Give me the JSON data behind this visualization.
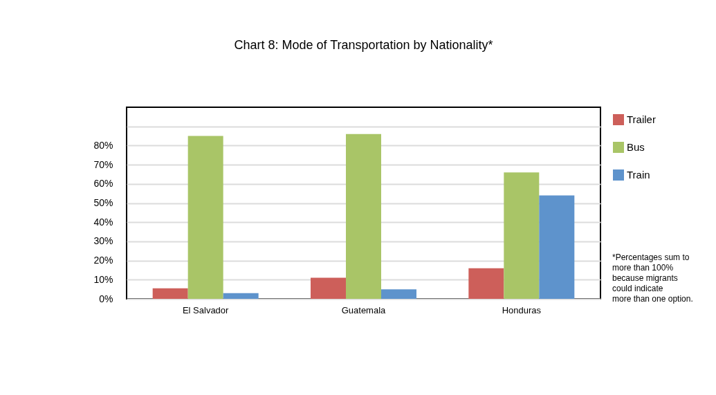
{
  "chart_data": {
    "type": "bar",
    "title": "Chart 8: Mode of Transportation by Nationality*",
    "categories": [
      "El Salvador",
      "Guatemala",
      "Honduras"
    ],
    "series": [
      {
        "name": "Trailer",
        "color": "#cd5f5a",
        "values": [
          5.5,
          11,
          16
        ]
      },
      {
        "name": "Bus",
        "color": "#a9c567",
        "values": [
          85,
          86,
          66
        ]
      },
      {
        "name": "Train",
        "color": "#5e93cc",
        "values": [
          3,
          5,
          54
        ]
      }
    ],
    "ylim": [
      0,
      100
    ],
    "yticks": [
      {
        "value": 0,
        "label": "0%"
      },
      {
        "value": 10,
        "label": "10%"
      },
      {
        "value": 20,
        "label": "20%"
      },
      {
        "value": 30,
        "label": "30%"
      },
      {
        "value": 40,
        "label": "40%"
      },
      {
        "value": 50,
        "label": "50%"
      },
      {
        "value": 60,
        "label": "60%"
      },
      {
        "value": 70,
        "label": "70%"
      },
      {
        "value": 80,
        "label": "80%"
      },
      {
        "value": 90,
        "label": null
      }
    ],
    "grid": "y",
    "legend": "top right",
    "annotations": [
      "*Percentages sum to\nmore than 100%\nbecause migrants\ncould indicate\nmore than one option."
    ]
  }
}
